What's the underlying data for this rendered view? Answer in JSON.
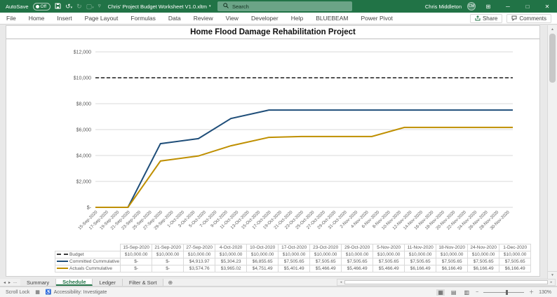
{
  "title_bar": {
    "autosave_label": "AutoSave",
    "autosave_state": "Off",
    "document_title": "Chris' Project Budget Worksheet V1.0.xltm",
    "search_placeholder": "Search",
    "user_name": "Chris Middleton",
    "user_initials": "CM"
  },
  "menu_bar": {
    "tabs": [
      "File",
      "Home",
      "Insert",
      "Page Layout",
      "Formulas",
      "Data",
      "Review",
      "View",
      "Developer",
      "Help",
      "BLUEBEAM",
      "Power Pivot"
    ],
    "share_label": "Share",
    "comments_label": "Comments"
  },
  "chart_data": {
    "type": "line",
    "title": "Home Flood Damage Rehabilitation Project",
    "xlabel": "",
    "ylabel": "",
    "ylim": [
      0,
      12000
    ],
    "grid": "horizontal",
    "legend_position": "table-below",
    "ytick_labels": [
      "$12,000",
      "$10,000",
      "$8,000",
      "$6,000",
      "$4,000",
      "$2,000",
      "$-"
    ],
    "ytick_values": [
      12000,
      10000,
      8000,
      6000,
      4000,
      2000,
      0
    ],
    "x_axis_start": "15-Sep-2020",
    "x_axis_end": "1-Dec-2020",
    "xtick_interval_days": 2,
    "x_range_days": [
      0,
      77
    ],
    "xtick_labels": [
      "15-Sep-2020",
      "17-Sep-2020",
      "19-Sep-2020",
      "21-Sep-2020",
      "23-Sep-2020",
      "25-Sep-2020",
      "27-Sep-2020",
      "29-Sep-2020",
      "1-Oct-2020",
      "3-Oct-2020",
      "5-Oct-2020",
      "7-Oct-2020",
      "9-Oct-2020",
      "11-Oct-2020",
      "13-Oct-2020",
      "15-Oct-2020",
      "17-Oct-2020",
      "19-Oct-2020",
      "21-Oct-2020",
      "23-Oct-2020",
      "25-Oct-2020",
      "27-Oct-2020",
      "29-Oct-2020",
      "31-Oct-2020",
      "2-Nov-2020",
      "4-Nov-2020",
      "6-Nov-2020",
      "8-Nov-2020",
      "10-Nov-2020",
      "12-Nov-2020",
      "14-Nov-2020",
      "16-Nov-2020",
      "18-Nov-2020",
      "20-Nov-2020",
      "22-Nov-2020",
      "24-Nov-2020",
      "26-Nov-2020",
      "28-Nov-2020",
      "30-Nov-2020"
    ],
    "series": [
      {
        "name": "Budget",
        "color": "#3b3b3b",
        "style": "dashed",
        "days": [
          0,
          77
        ],
        "values": [
          10000,
          10000
        ]
      },
      {
        "name": "Committed Cummulative",
        "color": "#1f4e79",
        "style": "solid",
        "days": [
          0,
          6,
          12,
          19,
          25,
          32,
          38,
          44,
          51,
          57,
          64,
          70,
          77
        ],
        "values": [
          0,
          0,
          4913.97,
          5304.23,
          6855.65,
          7505.65,
          7505.65,
          7505.65,
          7505.65,
          7505.65,
          7505.65,
          7505.65,
          7505.65
        ]
      },
      {
        "name": "Actuals Cummulative",
        "color": "#bf8f00",
        "style": "solid",
        "days": [
          0,
          6,
          12,
          19,
          25,
          32,
          38,
          44,
          51,
          57,
          64,
          70,
          77
        ],
        "values": [
          0,
          0,
          3574.76,
          3965.02,
          4751.49,
          5401.49,
          5466.49,
          5466.49,
          5466.49,
          6166.49,
          6166.49,
          6166.49,
          6166.49
        ]
      }
    ]
  },
  "data_table": {
    "column_headers": [
      "15-Sep-2020",
      "21-Sep-2020",
      "27-Sep-2020",
      "4-Oct-2020",
      "10-Oct-2020",
      "17-Oct-2020",
      "23-Oct-2020",
      "29-Oct-2020",
      "5-Nov-2020",
      "11-Nov-2020",
      "18-Nov-2020",
      "24-Nov-2020",
      "1-Dec-2020"
    ],
    "rows": [
      {
        "label": "Budget",
        "line_style": "dashed-black",
        "values": [
          "$10,000.00",
          "$10,000.00",
          "$10,000.00",
          "$10,000.00",
          "$10,000.00",
          "$10,000.00",
          "$10,000.00",
          "$10,000.00",
          "$10,000.00",
          "$10,000.00",
          "$10,000.00",
          "$10,000.00",
          "$10,000.00"
        ]
      },
      {
        "label": "Committed Cummulative",
        "line_style": "solid-navy",
        "values": [
          "$-",
          "$-",
          "$4,913.97",
          "$5,304.23",
          "$6,855.65",
          "$7,505.65",
          "$7,505.65",
          "$7,505.65",
          "$7,505.65",
          "$7,505.65",
          "$7,505.65",
          "$7,505.65",
          "$7,505.65"
        ]
      },
      {
        "label": "Actuals Cummulative",
        "line_style": "solid-gold",
        "values": [
          "$-",
          "$-",
          "$3,574.76",
          "$3,965.02",
          "$4,751.49",
          "$5,401.49",
          "$5,466.49",
          "$5,466.49",
          "$5,466.49",
          "$6,166.49",
          "$6,166.49",
          "$6,166.49",
          "$6,166.49"
        ]
      }
    ]
  },
  "sheet_tabs": {
    "overflow_label": "...",
    "tabs": [
      {
        "label": "Summary",
        "active": false
      },
      {
        "label": "Schedule",
        "active": true
      },
      {
        "label": "Ledger",
        "active": false
      },
      {
        "label": "Filter & Sort",
        "active": false
      }
    ]
  },
  "status_bar": {
    "scroll_lock_label": "Scroll Lock",
    "accessibility_label": "Accessibility: Investigate",
    "zoom_level": "130%"
  },
  "colors": {
    "titlebar_green": "#217346",
    "budget_line": "#3b3b3b",
    "committed_line": "#1f4e79",
    "actuals_line": "#bf8f00"
  }
}
